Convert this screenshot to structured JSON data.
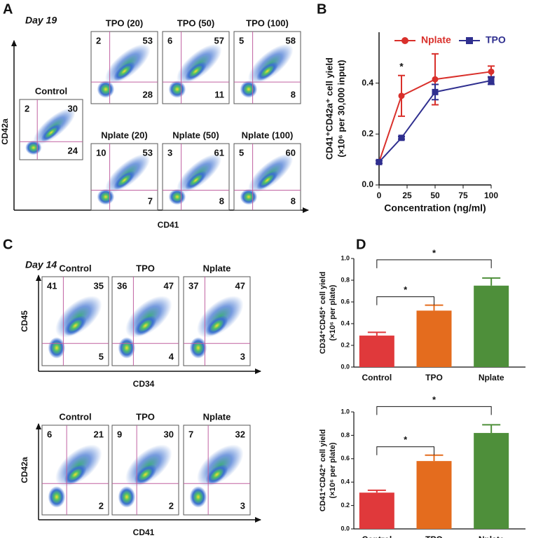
{
  "panel_a": {
    "label": "A",
    "day": "Day 19",
    "x_axis": "CD41",
    "y_axis": "CD42a",
    "plots": [
      {
        "title": "Control",
        "quadrants": [
          2,
          30,
          24
        ]
      },
      {
        "title": "TPO (20)",
        "quadrants": [
          2,
          53,
          28
        ]
      },
      {
        "title": "TPO (50)",
        "quadrants": [
          6,
          57,
          11
        ]
      },
      {
        "title": "TPO (100)",
        "quadrants": [
          5,
          58,
          8
        ]
      },
      {
        "title": "Nplate (20)",
        "quadrants": [
          10,
          53,
          7
        ]
      },
      {
        "title": "Nplate (50)",
        "quadrants": [
          3,
          61,
          8
        ]
      },
      {
        "title": "Nplate (100)",
        "quadrants": [
          5,
          60,
          8
        ]
      }
    ]
  },
  "panel_c": {
    "label": "C",
    "day": "Day 14",
    "rows": [
      {
        "x_axis": "CD34",
        "y_axis": "CD45",
        "plots": [
          {
            "title": "Control",
            "quadrants": [
              41,
              35,
              5
            ]
          },
          {
            "title": "TPO",
            "quadrants": [
              36,
              47,
              4
            ]
          },
          {
            "title": "Nplate",
            "quadrants": [
              37,
              47,
              3
            ]
          }
        ]
      },
      {
        "x_axis": "CD41",
        "y_axis": "CD42a",
        "plots": [
          {
            "title": "Control",
            "quadrants": [
              6,
              21,
              2
            ]
          },
          {
            "title": "TPO",
            "quadrants": [
              9,
              30,
              2
            ]
          },
          {
            "title": "Nplate",
            "quadrants": [
              7,
              32,
              3
            ]
          }
        ]
      }
    ]
  },
  "chart_data": [
    {
      "type": "line",
      "label": "B",
      "x_label": "Concentration (ng/ml)",
      "y_label": [
        "CD41⁺CD42a⁺ cell yield",
        "(×10⁶ per 30,000 input)"
      ],
      "x": [
        0,
        20,
        50,
        100
      ],
      "xlim": [
        0,
        100
      ],
      "xticks": [
        0,
        25,
        50,
        75,
        100
      ],
      "ylim": [
        0,
        0.6
      ],
      "yticks": [
        {
          "value": 0,
          "label": "0.0"
        },
        0.2,
        0.4
      ],
      "legend": "top",
      "series": [
        {
          "name": "Nplate",
          "color": "#d9302b",
          "marker": "circle",
          "values": [
            0.09,
            0.35,
            0.415,
            0.445
          ],
          "errors": [
            0.005,
            0.08,
            0.1,
            0.022
          ]
        },
        {
          "name": "TPO",
          "color": "#2f2f8f",
          "marker": "square",
          "values": [
            0.09,
            0.185,
            0.365,
            0.41
          ],
          "errors": [
            0.005,
            0.005,
            0.03,
            0.015
          ]
        }
      ],
      "annotations": [
        {
          "text": "*",
          "x": 20
        }
      ]
    },
    {
      "type": "bar",
      "label": "D",
      "y_label": [
        "CD34⁺CD45⁺ cell yield",
        "(×10⁶ per plate)"
      ],
      "categories": [
        "Control",
        "TPO",
        "Nplate"
      ],
      "colors": [
        "#e0393b",
        "#e46c1e",
        "#4e8f3a"
      ],
      "values": [
        0.29,
        0.52,
        0.75
      ],
      "errors": [
        0.03,
        0.05,
        0.07
      ],
      "ylim": [
        0,
        1.0
      ],
      "yticks": [
        {
          "value": 0,
          "label": "0.0"
        },
        0.2,
        0.4,
        0.6,
        0.8,
        {
          "value": 1.0,
          "label": "1.0"
        }
      ],
      "brackets": [
        {
          "from": "Control",
          "to": "TPO",
          "label": "*"
        },
        {
          "from": "Control",
          "to": "Nplate",
          "label": "*"
        }
      ]
    },
    {
      "type": "bar",
      "y_label": [
        "CD41⁺CD42⁺ cell yield",
        "(×10⁶ per plate)"
      ],
      "categories": [
        "Control",
        "TPO",
        "Nplate"
      ],
      "colors": [
        "#e0393b",
        "#e46c1e",
        "#4e8f3a"
      ],
      "values": [
        0.31,
        0.58,
        0.82
      ],
      "errors": [
        0.02,
        0.05,
        0.07
      ],
      "ylim": [
        0,
        1.0
      ],
      "yticks": [
        {
          "value": 0,
          "label": "0.0"
        },
        0.2,
        0.4,
        0.6,
        0.8,
        {
          "value": 1.0,
          "label": "1.0"
        }
      ],
      "brackets": [
        {
          "from": "Control",
          "to": "TPO",
          "label": "*"
        },
        {
          "from": "Control",
          "to": "Nplate",
          "label": "*"
        }
      ]
    }
  ]
}
